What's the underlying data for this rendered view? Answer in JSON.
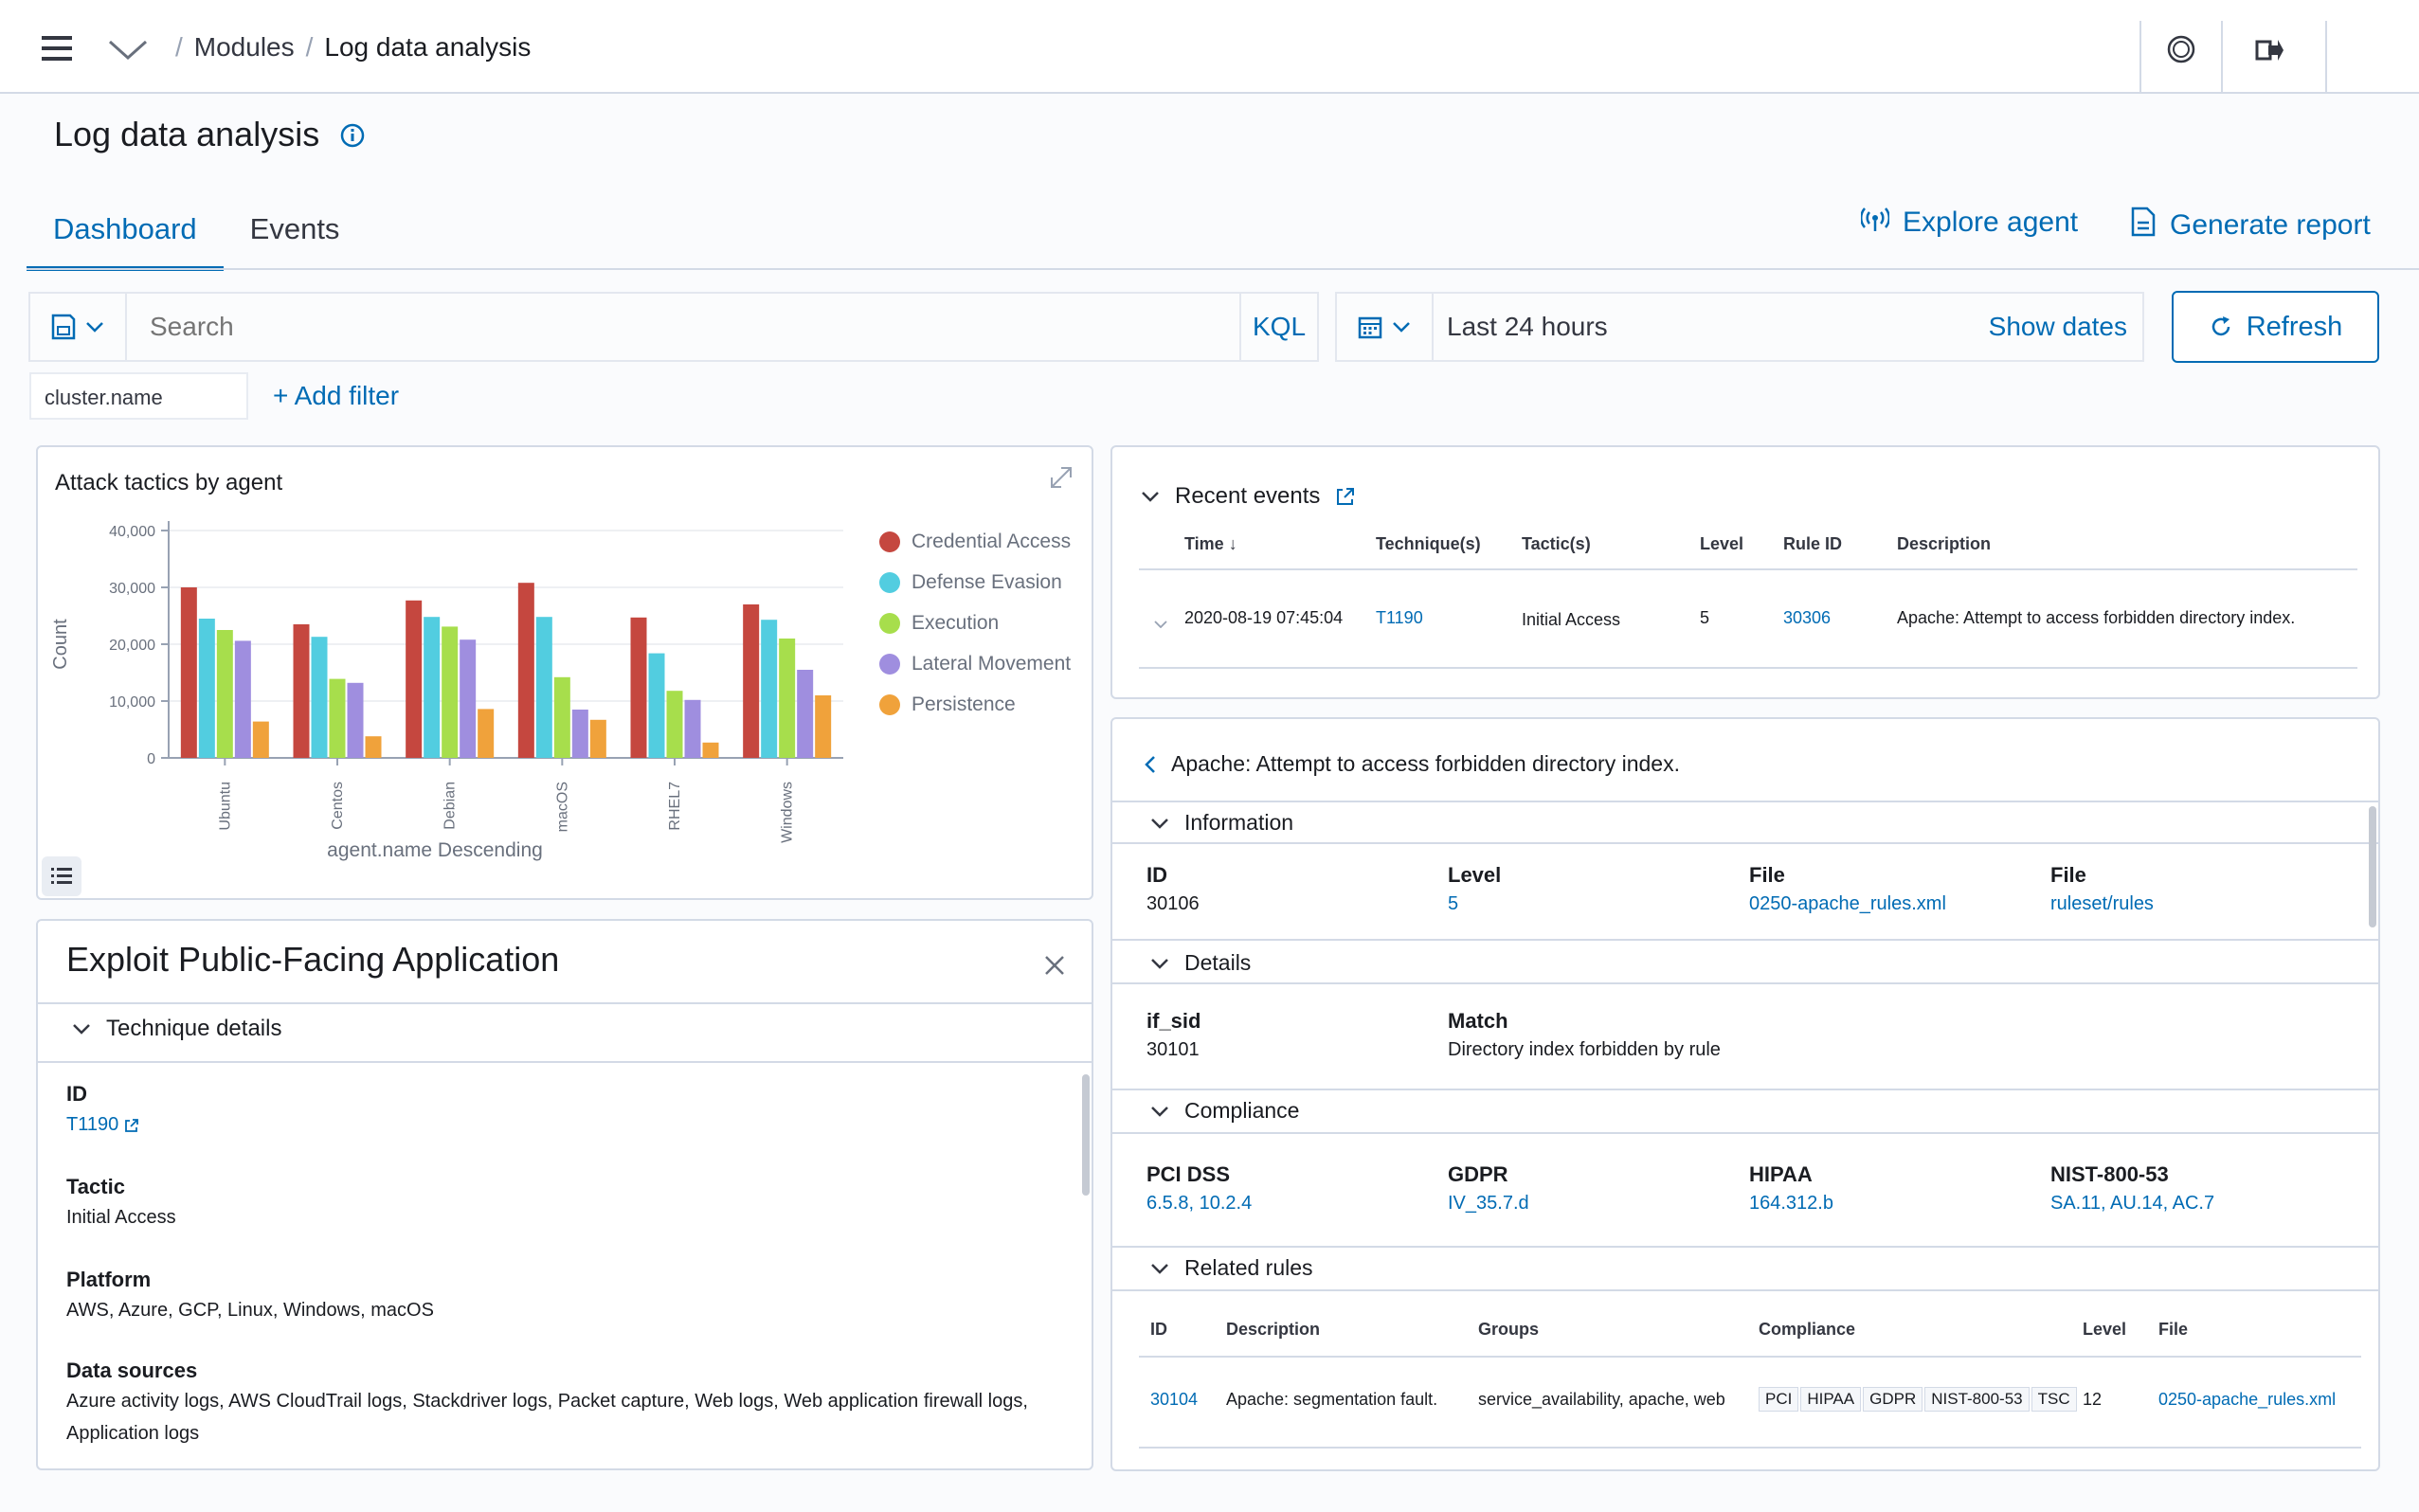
{
  "topbar": {
    "breadcrumb_modules": "Modules",
    "breadcrumb_current": "Log data analysis"
  },
  "page": {
    "title": "Log data analysis",
    "tabs": [
      "Dashboard",
      "Events"
    ],
    "active_tab": "Dashboard",
    "explore_agent": "Explore agent",
    "generate_report": "Generate report"
  },
  "query": {
    "search_placeholder": "Search",
    "kql": "KQL",
    "date_range": "Last 24 hours",
    "show_dates": "Show dates",
    "refresh": "Refresh",
    "filter_pill": "cluster.name",
    "add_filter": "+ Add filter"
  },
  "colors": {
    "accent": "#006bb4",
    "credential_access": "#c5473f",
    "defense_evasion": "#52cde0",
    "execution": "#a7de4c",
    "lateral_movement": "#9f8edf",
    "persistence": "#f0a23b"
  },
  "chart_data": {
    "type": "bar",
    "title": "Attack tactics by agent",
    "xlabel": "agent.name Descending",
    "ylabel": "Count",
    "ylim": [
      0,
      40000
    ],
    "yticks": [
      "0",
      "10,000",
      "20,000",
      "30,000",
      "40,000"
    ],
    "categories": [
      "Ubuntu",
      "Centos",
      "Debian",
      "macOS",
      "RHEL7",
      "Windows"
    ],
    "legend_position": "right",
    "grid": true,
    "series": [
      {
        "name": "Credential Access",
        "color": "#c5473f",
        "values": [
          30000,
          23500,
          27700,
          30800,
          24700,
          27000
        ]
      },
      {
        "name": "Defense Evasion",
        "color": "#52cde0",
        "values": [
          24500,
          21300,
          24800,
          24800,
          18400,
          24300
        ]
      },
      {
        "name": "Execution",
        "color": "#a7de4c",
        "values": [
          22500,
          13900,
          23100,
          14200,
          11800,
          21000
        ]
      },
      {
        "name": "Lateral Movement",
        "color": "#9f8edf",
        "values": [
          20600,
          13200,
          20800,
          8500,
          10200,
          15500
        ]
      },
      {
        "name": "Persistence",
        "color": "#f0a23b",
        "values": [
          6400,
          3800,
          8600,
          6700,
          2700,
          11000
        ]
      }
    ]
  },
  "technique": {
    "title": "Exploit Public-Facing Application",
    "section": "Technique details",
    "id_label": "ID",
    "id_value": "T1190",
    "tactic_label": "Tactic",
    "tactic_value": "Initial Access",
    "platform_label": "Platform",
    "platform_value": "AWS, Azure, GCP, Linux, Windows, macOS",
    "datasources_label": "Data sources",
    "datasources_value": "Azure activity logs, AWS CloudTrail logs, Stackdriver logs, Packet capture, Web logs, Web application firewall logs, Application logs"
  },
  "recent_events": {
    "title": "Recent events",
    "columns": [
      "Time",
      "Technique(s)",
      "Tactic(s)",
      "Level",
      "Rule ID",
      "Description"
    ],
    "rows": [
      {
        "time": "2020-08-19 07:45:04",
        "technique": "T1190",
        "tactic": "Initial Access",
        "level": "5",
        "rule_id": "30306",
        "description": "Apache: Attempt to access forbidden directory index."
      }
    ]
  },
  "rule": {
    "title": "Apache: Attempt to access forbidden directory index.",
    "information": {
      "heading": "Information",
      "id_label": "ID",
      "id_value": "30106",
      "level_label": "Level",
      "level_value": "5",
      "file_label": "File",
      "file_value": "0250-apache_rules.xml",
      "path_label": "File",
      "path_value": "ruleset/rules"
    },
    "details": {
      "heading": "Details",
      "ifsid_label": "if_sid",
      "ifsid_value": "30101",
      "match_label": "Match",
      "match_value": "Directory index forbidden by rule"
    },
    "compliance": {
      "heading": "Compliance",
      "pci_label": "PCI DSS",
      "pci_value": "6.5.8, 10.2.4",
      "gdpr_label": "GDPR",
      "gdpr_value": "IV_35.7.d",
      "hipaa_label": "HIPAA",
      "hipaa_value": "164.312.b",
      "nist_label": "NIST-800-53",
      "nist_value": "SA.11, AU.14, AC.7"
    },
    "related": {
      "heading": "Related rules",
      "columns": [
        "ID",
        "Description",
        "Groups",
        "Compliance",
        "Level",
        "File"
      ],
      "rows": [
        {
          "id": "30104",
          "description": "Apache: segmentation fault.",
          "groups": "service_availability, apache, web",
          "compliance": [
            "PCI",
            "HIPAA",
            "GDPR",
            "NIST-800-53",
            "TSC"
          ],
          "level": "12",
          "file": "0250-apache_rules.xml"
        }
      ]
    }
  }
}
